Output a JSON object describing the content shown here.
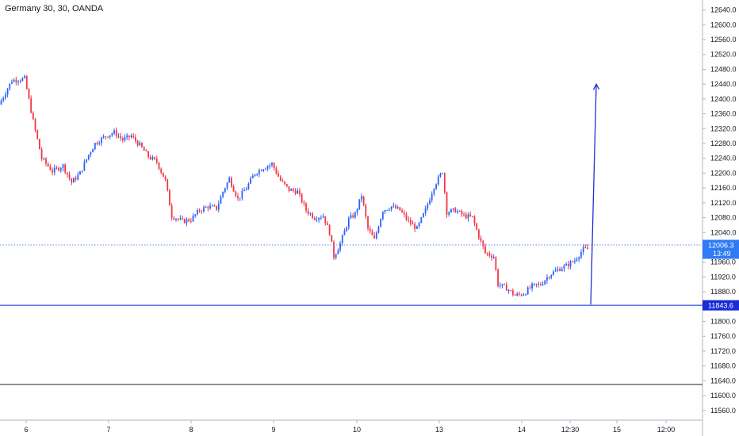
{
  "header": {
    "title": "Germany 30, 30, OANDA"
  },
  "colors": {
    "up": "#2962ff",
    "down": "#f23645",
    "line": "#2f4de8",
    "drawn_arrow": "#1f2fd8",
    "axis_text": "#131722"
  },
  "chart_data": {
    "type": "candlestick",
    "y_ticks": [
      "12640.0",
      "12600.0",
      "12560.0",
      "12520.0",
      "12480.0",
      "12440.0",
      "12400.0",
      "12360.0",
      "12320.0",
      "12280.0",
      "12240.0",
      "12200.0",
      "12160.0",
      "12120.0",
      "12080.0",
      "12040.0",
      "11960.0",
      "11920.0",
      "11880.0",
      "11800.0",
      "11760.0",
      "11720.0",
      "11680.0",
      "11640.0",
      "11600.0",
      "11560.0"
    ],
    "y_tick_values": [
      12640,
      12600,
      12560,
      12520,
      12480,
      12440,
      12400,
      12360,
      12320,
      12280,
      12240,
      12200,
      12160,
      12120,
      12080,
      12040,
      11960,
      11920,
      11880,
      11800,
      11760,
      11720,
      11680,
      11640,
      11600,
      11560
    ],
    "ylim": [
      11530,
      12660
    ],
    "x_ticks": [
      "6",
      "7",
      "8",
      "9",
      "10",
      "13",
      "14",
      "12:30",
      "15",
      "12:00"
    ],
    "current_price": {
      "value": 12006.3,
      "label": "12006.3",
      "countdown": "13:49"
    },
    "horizontal_line": {
      "value": 11843.6,
      "label": "11843.6"
    },
    "lower_line": {
      "value": 11630
    },
    "arrow": {
      "from": 11846,
      "to": 12440
    },
    "price_path": [
      [
        0,
        12385
      ],
      [
        6,
        12450
      ],
      [
        12,
        12455
      ],
      [
        16,
        12340
      ],
      [
        20,
        12240
      ],
      [
        25,
        12205
      ],
      [
        30,
        12220
      ],
      [
        34,
        12175
      ],
      [
        38,
        12200
      ],
      [
        42,
        12250
      ],
      [
        45,
        12280
      ],
      [
        50,
        12300
      ],
      [
        54,
        12310
      ],
      [
        58,
        12290
      ],
      [
        62,
        12300
      ],
      [
        66,
        12275
      ],
      [
        70,
        12245
      ],
      [
        74,
        12230
      ],
      [
        78,
        12180
      ],
      [
        81,
        12085
      ],
      [
        86,
        12070
      ],
      [
        90,
        12075
      ],
      [
        94,
        12100
      ],
      [
        98,
        12110
      ],
      [
        102,
        12105
      ],
      [
        105,
        12150
      ],
      [
        108,
        12185
      ],
      [
        112,
        12130
      ],
      [
        116,
        12160
      ],
      [
        120,
        12200
      ],
      [
        124,
        12215
      ],
      [
        128,
        12225
      ],
      [
        132,
        12180
      ],
      [
        136,
        12155
      ],
      [
        140,
        12150
      ],
      [
        144,
        12100
      ],
      [
        148,
        12080
      ],
      [
        152,
        12085
      ],
      [
        155,
        12040
      ],
      [
        157,
        11975
      ],
      [
        160,
        12010
      ],
      [
        164,
        12075
      ],
      [
        167,
        12090
      ],
      [
        170,
        12140
      ],
      [
        173,
        12050
      ],
      [
        176,
        12020
      ],
      [
        180,
        12100
      ],
      [
        184,
        12110
      ],
      [
        188,
        12100
      ],
      [
        192,
        12070
      ],
      [
        196,
        12050
      ],
      [
        200,
        12100
      ],
      [
        204,
        12165
      ],
      [
        208,
        12205
      ],
      [
        210,
        12095
      ],
      [
        214,
        12100
      ],
      [
        218,
        12085
      ],
      [
        222,
        12080
      ],
      [
        225,
        12030
      ],
      [
        228,
        11985
      ],
      [
        232,
        11975
      ],
      [
        234,
        11900
      ],
      [
        238,
        11890
      ],
      [
        242,
        11870
      ],
      [
        246,
        11875
      ],
      [
        250,
        11895
      ],
      [
        254,
        11900
      ],
      [
        258,
        11925
      ],
      [
        262,
        11940
      ],
      [
        266,
        11950
      ],
      [
        270,
        11965
      ],
      [
        274,
        11995
      ]
    ]
  }
}
